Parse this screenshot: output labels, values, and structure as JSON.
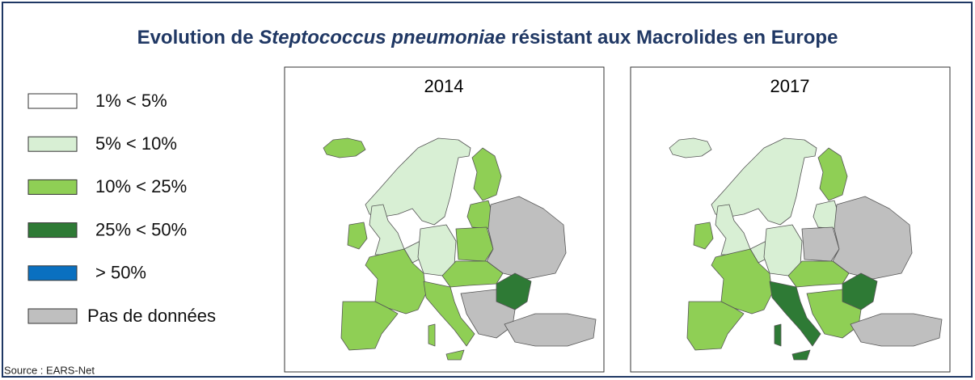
{
  "title": {
    "prefix": "Evolution de",
    "italic": "Steptococcus pneumoniae",
    "suffix": "résistant aux Macrolides en Europe"
  },
  "legend": [
    {
      "label": "1% < 5%",
      "color": "#ffffff"
    },
    {
      "label": "5% < 10%",
      "color": "#d8efd4"
    },
    {
      "label": "10% < 25%",
      "color": "#8fcf55"
    },
    {
      "label": "25% < 50%",
      "color": "#2e7a35"
    },
    {
      "label": "> 50%",
      "color": "#0a70c0"
    },
    {
      "label": "Pas de données",
      "color": "#bfbfbf"
    }
  ],
  "maps": [
    {
      "year": "2014"
    },
    {
      "year": "2017"
    }
  ],
  "source": "Source : EARS-Net"
}
